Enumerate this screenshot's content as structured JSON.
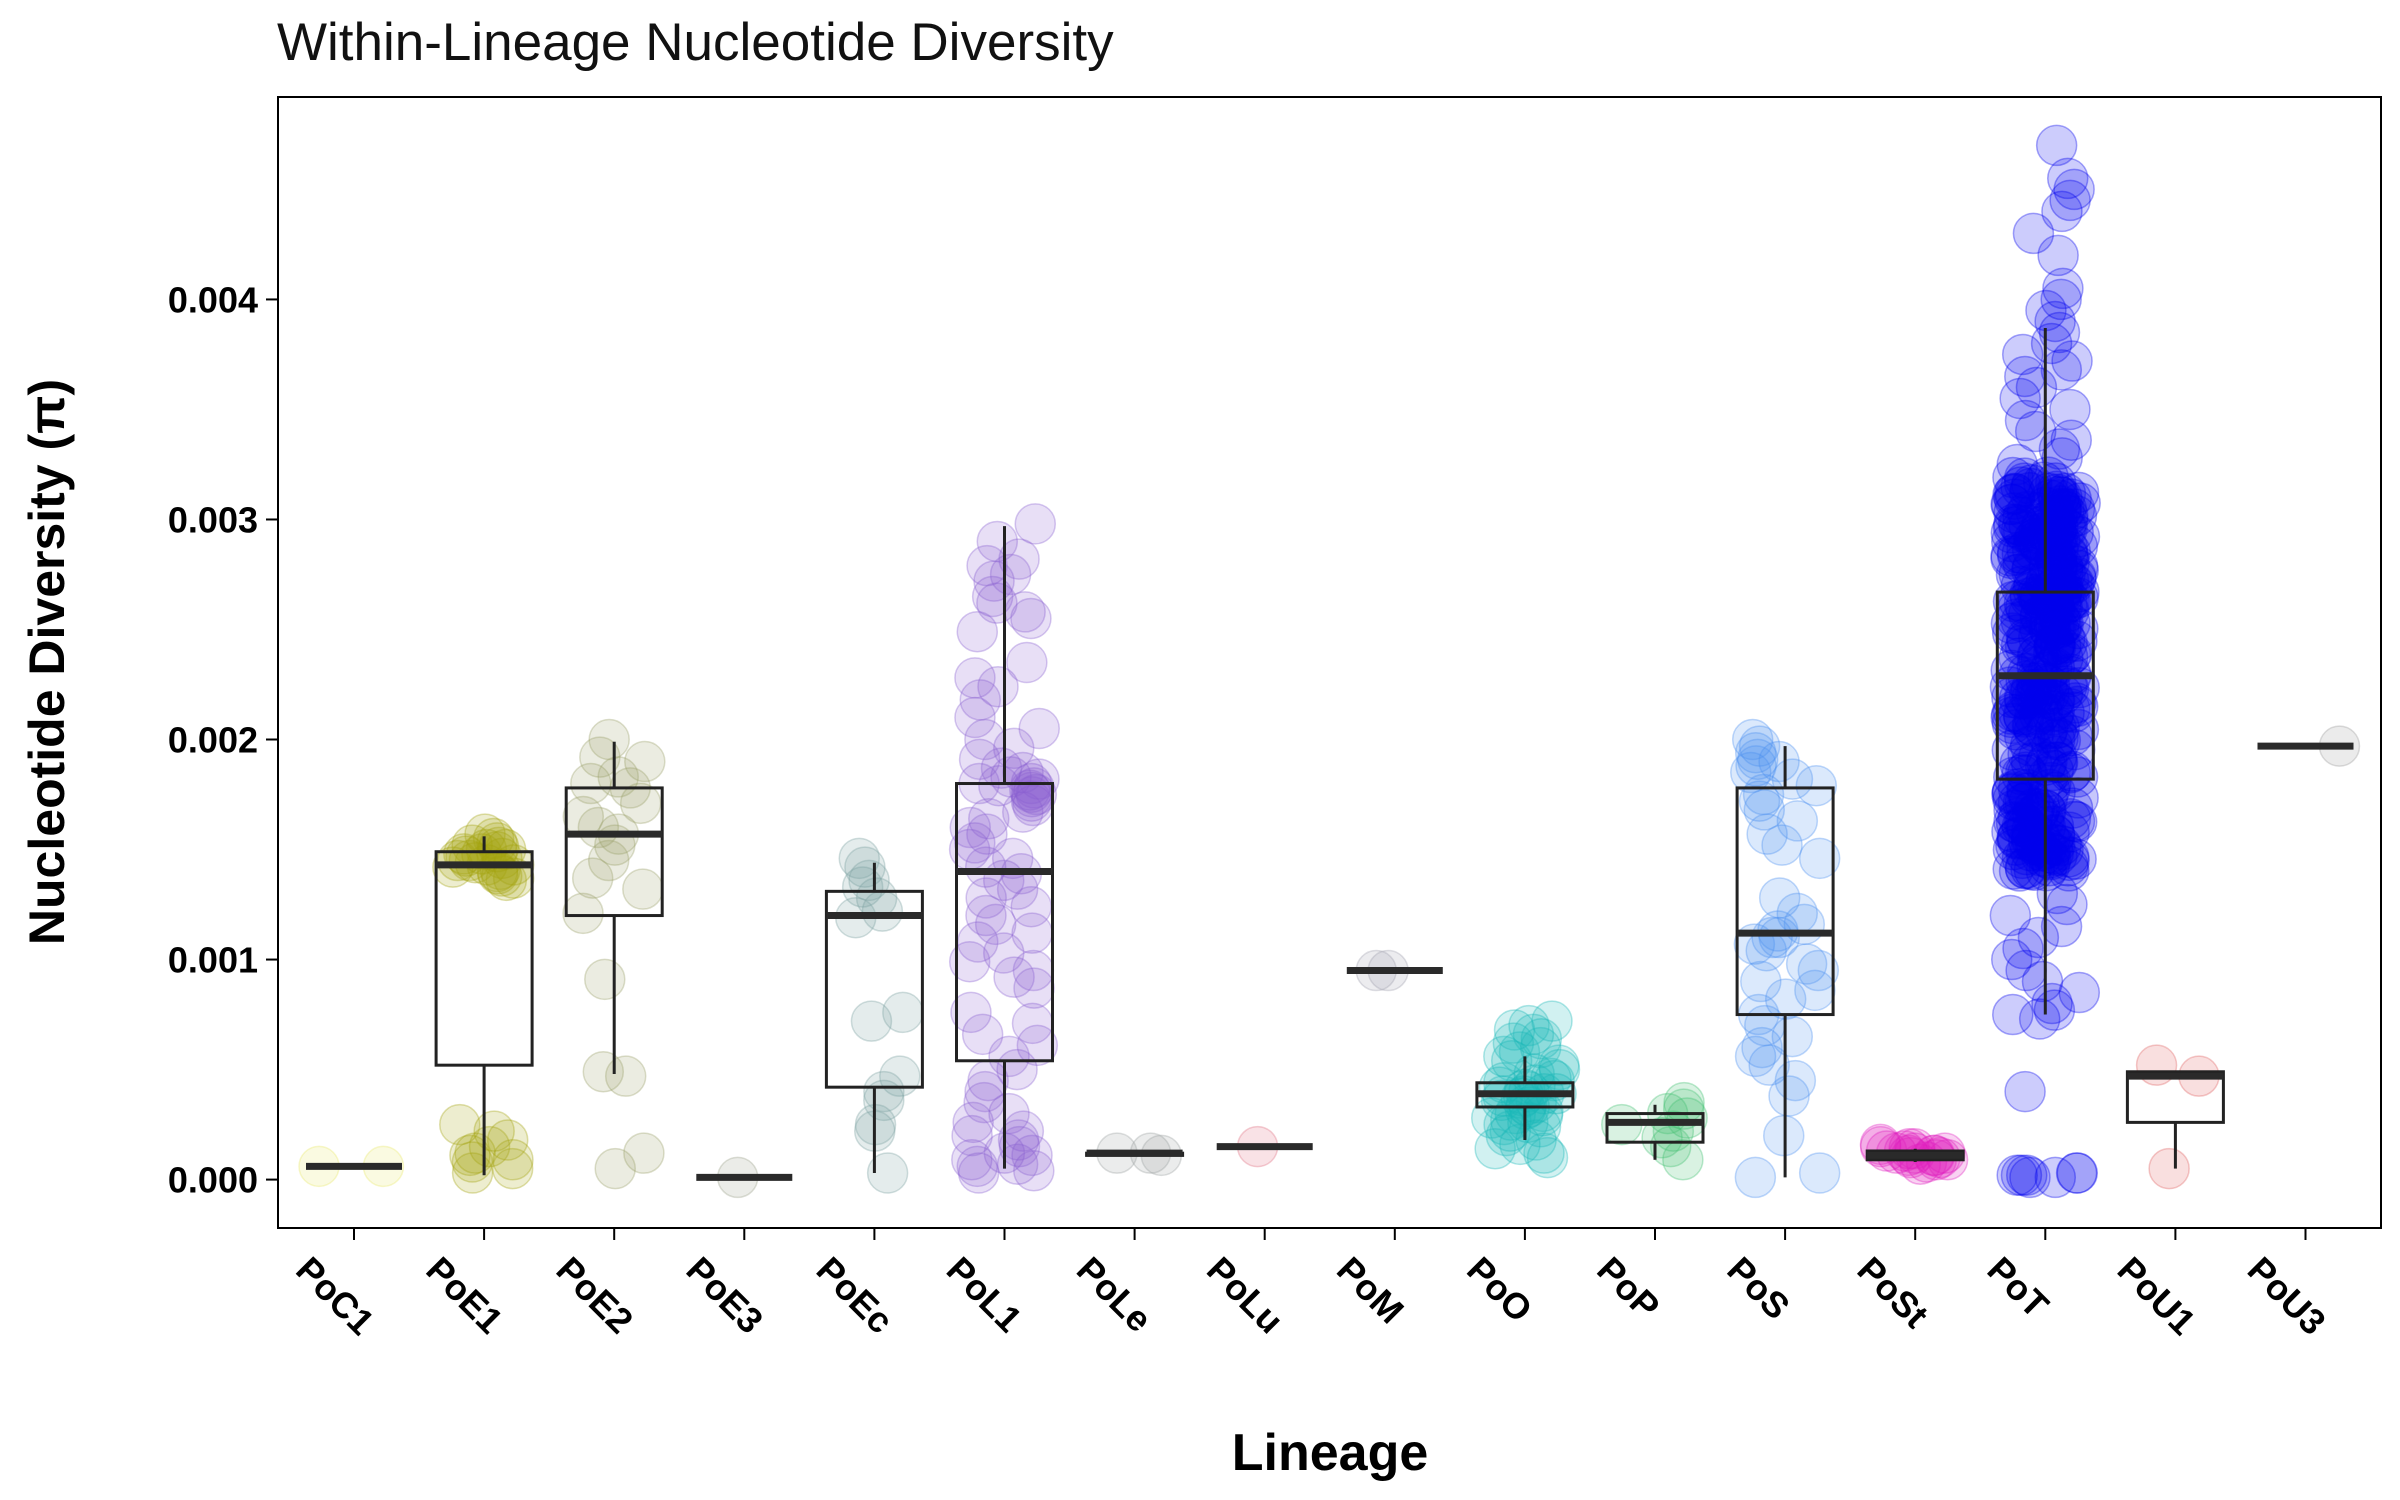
{
  "chart_data": {
    "type": "box-jitter",
    "title": "Within-Lineage Nucleotide Diversity",
    "xlabel": "Lineage",
    "ylabel": "Nucleotide Diversity (π)",
    "ylim": [
      -0.00022,
      0.00492
    ],
    "yticks": [
      {
        "value": 0.0,
        "label": "0.000"
      },
      {
        "value": 0.001,
        "label": "0.001"
      },
      {
        "value": 0.002,
        "label": "0.002"
      },
      {
        "value": 0.003,
        "label": "0.003"
      },
      {
        "value": 0.004,
        "label": "0.004"
      }
    ],
    "categories": [
      "PoC1",
      "PoE1",
      "PoE2",
      "PoE3",
      "PoEc",
      "PoL1",
      "PoLe",
      "PoLu",
      "PoM",
      "PoO",
      "PoP",
      "PoS",
      "PoSt",
      "PoT",
      "PoU1",
      "PoU3"
    ],
    "grid": false,
    "legend": "none",
    "series": [
      {
        "category": "PoC1",
        "color": "#e8e86a",
        "box": {
          "min": 6e-05,
          "q1": 6e-05,
          "median": 6e-05,
          "q3": 6e-05,
          "max": 6e-05
        },
        "points": [
          6e-05,
          6e-05
        ]
      },
      {
        "category": "PoE1",
        "color": "#a3a30f",
        "box": {
          "min": 2e-05,
          "q1": 0.00052,
          "median": 0.00143,
          "q3": 0.00149,
          "max": 0.00156
        },
        "points": [
          0.00145,
          0.00148,
          0.00141,
          0.0015,
          0.00152,
          0.00138,
          0.00146,
          0.00143,
          0.00149,
          0.00155,
          0.00136,
          0.00147,
          0.00144,
          0.00151,
          0.00139,
          0.00142,
          0.00153,
          0.00148,
          0.00137,
          0.0015,
          0.00145,
          0.00157,
          0.00143,
          0.0014,
          0.00022,
          0.00015,
          9e-05,
          5e-05,
          0.00012,
          3e-05,
          0.00018,
          8e-05,
          0.00025,
          0.00011
        ]
      },
      {
        "category": "PoE2",
        "color": "#9ba06a",
        "box": {
          "min": 0.00048,
          "q1": 0.0012,
          "median": 0.00157,
          "q3": 0.00178,
          "max": 0.00199
        },
        "points": [
          0.002,
          0.00192,
          0.0019,
          0.00183,
          0.00178,
          0.00171,
          0.00165,
          0.0016,
          0.00157,
          0.00152,
          0.00145,
          0.00137,
          0.00132,
          0.00121,
          0.00091,
          0.00049,
          0.00047,
          0.00012,
          5e-05,
          0.0018
        ]
      },
      {
        "category": "PoE3",
        "color": "#9aa08a",
        "box": {
          "min": 1e-05,
          "q1": 1e-05,
          "median": 1e-05,
          "q3": 1e-05,
          "max": 1e-05
        },
        "points": [
          1e-05
        ]
      },
      {
        "category": "PoEc",
        "color": "#7aa0a0",
        "box": {
          "min": 3e-05,
          "q1": 0.00042,
          "median": 0.0012,
          "q3": 0.00131,
          "max": 0.00144
        },
        "points": [
          0.00146,
          0.00142,
          0.00136,
          0.00133,
          0.00128,
          0.00122,
          0.00119,
          0.00076,
          0.00072,
          0.00047,
          0.0004,
          0.00036,
          0.00025,
          0.00022,
          3e-05
        ]
      },
      {
        "category": "PoL1",
        "color": "#8a60d0",
        "box": {
          "min": 5e-05,
          "q1": 0.00054,
          "median": 0.0014,
          "q3": 0.0018,
          "max": 0.00297
        },
        "points": [
          0.00298,
          0.0029,
          0.00282,
          0.00279,
          0.00275,
          0.00272,
          0.00265,
          0.00262,
          0.00258,
          0.00255,
          0.00249,
          0.00235,
          0.00228,
          0.00224,
          0.00218,
          0.0021,
          0.00205,
          0.002,
          0.00196,
          0.00191,
          0.00187,
          0.00183,
          0.0018,
          0.00178,
          0.00176,
          0.00174,
          0.00172,
          0.0017,
          0.00167,
          0.00164,
          0.0016,
          0.00157,
          0.00153,
          0.0015,
          0.00146,
          0.00142,
          0.00139,
          0.00136,
          0.00132,
          0.00128,
          0.00124,
          0.0012,
          0.00116,
          0.00112,
          0.00108,
          0.00103,
          0.00099,
          0.00095,
          0.00092,
          0.00087,
          0.00076,
          0.00071,
          0.00066,
          0.00061,
          0.00056,
          0.0005,
          0.00045,
          0.0004,
          0.00035,
          0.0003,
          0.00026,
          0.00022,
          0.00018,
          0.00015,
          0.00012,
          9e-05,
          6e-05,
          4e-05,
          3e-05,
          7e-05,
          0.00011,
          0.0002,
          0.0018,
          0.00177,
          0.00182,
          0.00175,
          0.00185,
          0.00179
        ]
      },
      {
        "category": "PoLe",
        "color": "#9aa0a0",
        "box": {
          "min": 0.00011,
          "q1": 0.00011,
          "median": 0.00012,
          "q3": 0.00012,
          "max": 0.00012
        },
        "points": [
          0.00012,
          0.00012,
          0.00011
        ]
      },
      {
        "category": "PoLu",
        "color": "#e07080",
        "box": {
          "min": 0.00015,
          "q1": 0.00015,
          "median": 0.00015,
          "q3": 0.00015,
          "max": 0.00015
        },
        "points": [
          0.00015
        ]
      },
      {
        "category": "PoM",
        "color": "#a0a0b0",
        "box": {
          "min": 0.00095,
          "q1": 0.00095,
          "median": 0.00095,
          "q3": 0.00095,
          "max": 0.00095
        },
        "points": [
          0.00095,
          0.00095
        ]
      },
      {
        "category": "PoO",
        "color": "#1ab8b8",
        "box": {
          "min": 0.00018,
          "q1": 0.00033,
          "median": 0.00039,
          "q3": 0.00044,
          "max": 0.00056
        },
        "points": [
          0.00072,
          0.0007,
          0.00068,
          0.00066,
          0.00064,
          0.00062,
          0.0006,
          0.00058,
          0.00056,
          0.00054,
          0.00052,
          0.0005,
          0.00048,
          0.00046,
          0.00045,
          0.00044,
          0.00043,
          0.00042,
          0.00041,
          0.0004,
          0.00039,
          0.00039,
          0.00038,
          0.00038,
          0.00037,
          0.00036,
          0.00035,
          0.00034,
          0.00033,
          0.00032,
          0.00031,
          0.0003,
          0.00029,
          0.00028,
          0.00027,
          0.00026,
          0.00025,
          0.00024,
          0.00022,
          0.0002,
          0.00018,
          0.00016,
          0.00014,
          0.00012,
          0.0001
        ]
      },
      {
        "category": "PoP",
        "color": "#40c070",
        "box": {
          "min": 9e-05,
          "q1": 0.00017,
          "median": 0.00026,
          "q3": 0.0003,
          "max": 0.00034
        },
        "points": [
          0.00035,
          0.00032,
          0.0003,
          0.00028,
          0.00025,
          0.00022,
          0.00019,
          0.00015,
          9e-05
        ]
      },
      {
        "category": "PoS",
        "color": "#4a8ff0",
        "box": {
          "min": 1e-05,
          "q1": 0.00075,
          "median": 0.00112,
          "q3": 0.00178,
          "max": 0.00197
        },
        "points": [
          0.002,
          0.00197,
          0.00194,
          0.00191,
          0.00188,
          0.00185,
          0.00182,
          0.00179,
          0.00175,
          0.00172,
          0.00168,
          0.00163,
          0.00157,
          0.00152,
          0.00146,
          0.00128,
          0.00121,
          0.00116,
          0.00113,
          0.0011,
          0.00107,
          0.00104,
          0.00098,
          0.00095,
          0.0009,
          0.00086,
          0.00082,
          0.00075,
          0.0007,
          0.00065,
          0.0006,
          0.00056,
          0.00052,
          0.00045,
          0.00038,
          0.0002,
          3e-05,
          1e-05,
          0.0019,
          0.0011
        ]
      },
      {
        "category": "PoSt",
        "color": "#e020c0",
        "box": {
          "min": 8e-05,
          "q1": 9e-05,
          "median": 0.00011,
          "q3": 0.00013,
          "max": 0.00014
        },
        "points": [
          0.00016,
          0.00015,
          0.00014,
          0.00013,
          0.00012,
          0.00012,
          0.00011,
          0.00011,
          0.0001,
          0.0001,
          9e-05,
          9e-05,
          8e-05,
          7e-05,
          0.00013,
          0.00011,
          0.00012,
          0.00014
        ]
      },
      {
        "category": "PoT",
        "color": "#0000ee",
        "box": {
          "min": 0.00075,
          "q1": 0.00182,
          "median": 0.00229,
          "q3": 0.00267,
          "max": 0.00387
        },
        "dense_range": [
          0.0014,
          0.0032
        ],
        "points": [
          0.0047,
          0.00455,
          0.0045,
          0.00445,
          0.0044,
          0.0043,
          0.0042,
          0.00405,
          0.004,
          0.00395,
          0.0039,
          0.00385,
          0.0038,
          0.00375,
          0.00372,
          0.00368,
          0.00365,
          0.0036,
          0.00355,
          0.0035,
          0.00345,
          0.0034,
          0.00336,
          0.00332,
          0.00328,
          0.00325,
          0.0013,
          0.00125,
          0.0012,
          0.00115,
          0.0011,
          0.00105,
          0.001,
          0.00095,
          0.0009,
          0.00085,
          0.0008,
          0.00077,
          0.00075,
          0.00073,
          0.0004,
          3e-05,
          2e-05,
          2e-05,
          1e-05,
          1e-05,
          3e-05,
          2e-05
        ]
      },
      {
        "category": "PoU1",
        "color": "#e06060",
        "box": {
          "min": 5e-05,
          "q1": 0.00026,
          "median": 0.00047,
          "q3": 0.00049,
          "max": 0.00049
        },
        "points": [
          0.00052,
          0.00047,
          5e-05
        ]
      },
      {
        "category": "PoU3",
        "color": "#9a9a9a",
        "box": {
          "min": 0.00197,
          "q1": 0.00197,
          "median": 0.00197,
          "q3": 0.00197,
          "max": 0.00197
        },
        "points": [
          0.00197
        ]
      }
    ]
  }
}
